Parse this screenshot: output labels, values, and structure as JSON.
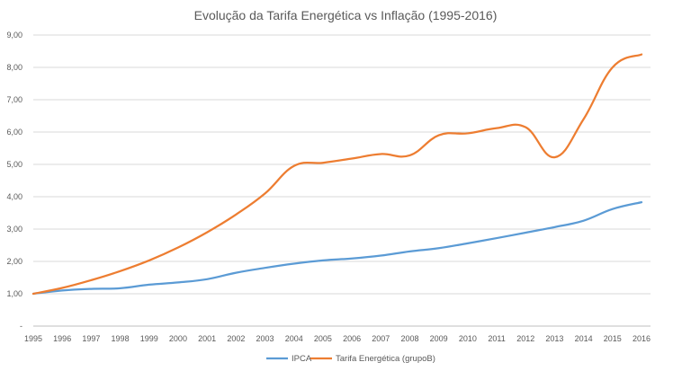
{
  "chart_data": {
    "type": "line",
    "title": "Evolução da Tarifa Energética vs Inflação (1995-2016)",
    "xlabel": "",
    "ylabel": "",
    "categories": [
      "1995",
      "1996",
      "1997",
      "1998",
      "1999",
      "2000",
      "2001",
      "2002",
      "2003",
      "2004",
      "2005",
      "2006",
      "2007",
      "2008",
      "2009",
      "2010",
      "2011",
      "2012",
      "2013",
      "2014",
      "2015",
      "2016"
    ],
    "ylim": [
      0,
      9
    ],
    "yticks": [
      {
        "value": 0,
        "label": "-"
      },
      {
        "value": 1,
        "label": "1,00"
      },
      {
        "value": 2,
        "label": "2,00"
      },
      {
        "value": 3,
        "label": "3,00"
      },
      {
        "value": 4,
        "label": "4,00"
      },
      {
        "value": 5,
        "label": "5,00"
      },
      {
        "value": 6,
        "label": "6,00"
      },
      {
        "value": 7,
        "label": "7,00"
      },
      {
        "value": 8,
        "label": "8,00"
      },
      {
        "value": 9,
        "label": "9,00"
      }
    ],
    "grid": true,
    "legend_position": "bottom",
    "series": [
      {
        "name": "IPCA",
        "color": "#5b9bd5",
        "values": [
          1.0,
          1.1,
          1.15,
          1.17,
          1.28,
          1.35,
          1.45,
          1.65,
          1.8,
          1.93,
          2.03,
          2.09,
          2.18,
          2.31,
          2.41,
          2.56,
          2.72,
          2.89,
          3.06,
          3.26,
          3.62,
          3.83
        ]
      },
      {
        "name": "Tarifa Energética (grupoB)",
        "color": "#ed7d31",
        "values": [
          1.0,
          1.18,
          1.42,
          1.7,
          2.03,
          2.43,
          2.9,
          3.45,
          4.1,
          4.95,
          5.05,
          5.18,
          5.32,
          5.28,
          5.9,
          5.96,
          6.12,
          6.15,
          5.22,
          6.4,
          8.0,
          8.4
        ]
      }
    ]
  }
}
